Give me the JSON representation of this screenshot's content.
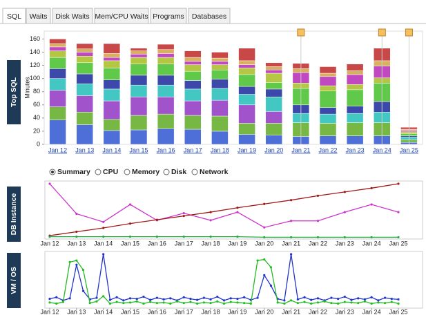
{
  "tabs": [
    "SQL",
    "Waits",
    "Disk Waits",
    "Mem/CPU Waits",
    "Programs",
    "Databases"
  ],
  "panels": [
    "Top SQL",
    "DB Instance",
    "VM / OS"
  ],
  "radio_options": [
    "Summary",
    "CPU",
    "Memory",
    "Disk",
    "Network"
  ],
  "chart_data": [
    {
      "type": "bar",
      "stacked": true,
      "y_label": "Minutes",
      "categories": [
        "Jan 12",
        "Jan 13",
        "Jan 14",
        "Jan 15",
        "Jan 16",
        "Jan 17",
        "Jan 18",
        "Jan 19",
        "Jan 20",
        "Jan 21",
        "Jan 22",
        "Jan 23",
        "Jan 24",
        "Jan 25"
      ],
      "ylim": [
        0,
        172
      ],
      "yticks": [
        0,
        20,
        40,
        60,
        80,
        100,
        120,
        140,
        160
      ],
      "series": [
        {
          "color": "#4f6fd8",
          "values": [
            37,
            30,
            21,
            22,
            24,
            23,
            20,
            15,
            14,
            12,
            13,
            13,
            13,
            3
          ]
        },
        {
          "color": "#76b843",
          "values": [
            20,
            19,
            17,
            22,
            22,
            21,
            23,
            17,
            18,
            21,
            19,
            20,
            20,
            4
          ]
        },
        {
          "color": "#a153cc",
          "values": [
            25,
            25,
            28,
            28,
            26,
            22,
            24,
            28,
            18,
            0,
            0,
            0,
            0,
            0
          ]
        },
        {
          "color": "#43c7c2",
          "values": [
            18,
            18,
            18,
            18,
            18,
            18,
            18,
            16,
            22,
            14,
            14,
            14,
            16,
            4
          ]
        },
        {
          "color": "#3c48aa",
          "values": [
            15,
            15,
            14,
            15,
            15,
            13,
            14,
            12,
            12,
            13,
            10,
            11,
            16,
            2
          ]
        },
        {
          "color": "#61c94a",
          "values": [
            17,
            17,
            18,
            17,
            17,
            14,
            14,
            18,
            10,
            25,
            25,
            25,
            28,
            3
          ]
        },
        {
          "color": "#b5c642",
          "values": [
            10,
            10,
            11,
            10,
            10,
            10,
            8,
            10,
            14,
            8,
            8,
            8,
            8,
            3
          ]
        },
        {
          "color": "#c048c0",
          "values": [
            6,
            6,
            5,
            5,
            6,
            5,
            5,
            5,
            5,
            16,
            14,
            15,
            18,
            2
          ]
        },
        {
          "color": "#d8b060",
          "values": [
            5,
            5,
            6,
            5,
            6,
            6,
            5,
            6,
            5,
            6,
            5,
            6,
            8,
            2
          ]
        },
        {
          "color": "#c84848",
          "values": [
            7,
            8,
            15,
            4,
            8,
            10,
            9,
            19,
            6,
            8,
            10,
            10,
            19,
            3
          ]
        }
      ]
    },
    {
      "type": "line",
      "categories": [
        "Jan 12",
        "Jan 13",
        "Jan 14",
        "Jan 15",
        "Jan 16",
        "Jan 17",
        "Jan 18",
        "Jan 19",
        "Jan 20",
        "Jan 21",
        "Jan 22",
        "Jan 23",
        "Jan 24",
        "Jan 25"
      ],
      "ylim": [
        0,
        100
      ],
      "series": [
        {
          "color": "#cc33cc",
          "values": [
            100,
            45,
            30,
            62,
            33,
            46,
            33,
            48,
            20,
            32,
            32,
            48,
            62,
            48
          ]
        },
        {
          "color": "#a01818",
          "values": [
            5,
            12,
            19,
            27,
            34,
            41,
            48,
            56,
            63,
            70,
            78,
            85,
            92,
            100
          ]
        },
        {
          "color": "#22aa44",
          "values": [
            3,
            3,
            3,
            3,
            3,
            3,
            3,
            3,
            2,
            2,
            2,
            2,
            2,
            2
          ]
        }
      ]
    },
    {
      "type": "line",
      "x": [
        0,
        0.25,
        0.5,
        0.75,
        1,
        1.25,
        1.5,
        1.75,
        2,
        2.25,
        2.5,
        2.75,
        3,
        3.25,
        3.5,
        3.75,
        4,
        4.25,
        4.5,
        4.75,
        5,
        5.25,
        5.5,
        5.75,
        6,
        6.25,
        6.5,
        6.75,
        7,
        7.25,
        7.5,
        7.75,
        8,
        8.25,
        8.5,
        8.75,
        9,
        9.25,
        9.5,
        9.75,
        10,
        10.25,
        10.5,
        10.75,
        11,
        11.25,
        11.5,
        11.75,
        12,
        12.25,
        12.5,
        12.75,
        13
      ],
      "xlim": [
        0,
        13
      ],
      "xticks": [
        {
          "value": 0,
          "label": "Jan 12"
        },
        {
          "value": 1,
          "label": "Jan 13"
        },
        {
          "value": 2,
          "label": "Jan 14"
        },
        {
          "value": 3,
          "label": "Jan 15"
        },
        {
          "value": 4,
          "label": "Jan 16"
        },
        {
          "value": 5,
          "label": "Jan 17"
        },
        {
          "value": 6,
          "label": "Jan 18"
        },
        {
          "value": 7,
          "label": "Jan 19"
        },
        {
          "value": 8,
          "label": "Jan 20"
        },
        {
          "value": 9,
          "label": "Jan 21"
        },
        {
          "value": 10,
          "label": "Jan 22"
        },
        {
          "value": 11,
          "label": "Jan 23"
        },
        {
          "value": 12,
          "label": "Jan 24"
        },
        {
          "value": 13,
          "label": "Jan 25"
        }
      ],
      "ylim": [
        0,
        100
      ],
      "series": [
        {
          "color": "#2233cc",
          "values": [
            15,
            18,
            12,
            16,
            80,
            30,
            14,
            17,
            100,
            13,
            18,
            12,
            16,
            15,
            19,
            13,
            17,
            14,
            16,
            12,
            18,
            15,
            13,
            17,
            14,
            19,
            12,
            16,
            15,
            18,
            13,
            17,
            60,
            40,
            15,
            12,
            100,
            14,
            18,
            13,
            16,
            12,
            17,
            15,
            19,
            13,
            16,
            14,
            18,
            12,
            17,
            15,
            14
          ]
        },
        {
          "color": "#22bb22",
          "values": [
            8,
            6,
            9,
            85,
            88,
            70,
            7,
            10,
            20,
            6,
            9,
            7,
            8,
            10,
            6,
            9,
            7,
            8,
            6,
            10,
            7,
            9,
            6,
            8,
            7,
            10,
            6,
            9,
            8,
            7,
            6,
            88,
            90,
            75,
            8,
            6,
            12,
            7,
            9,
            6,
            8,
            10,
            7,
            6,
            9,
            8,
            7,
            10,
            6,
            8,
            7,
            9,
            6
          ]
        }
      ]
    }
  ]
}
